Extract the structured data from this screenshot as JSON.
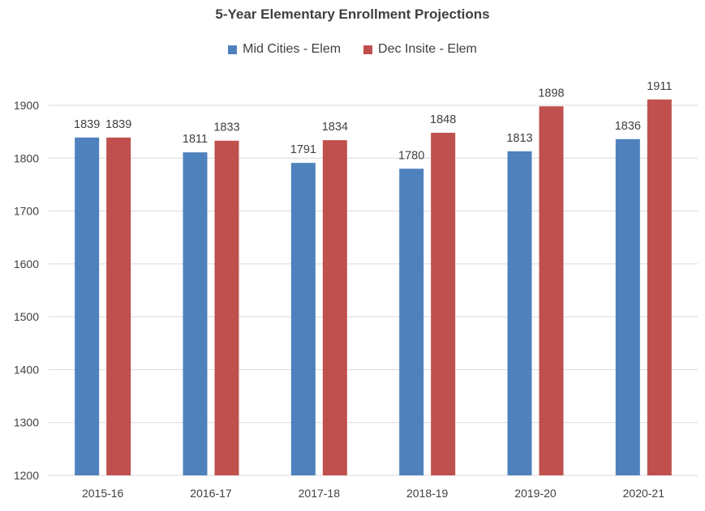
{
  "chart_data": {
    "type": "bar",
    "title": "5-Year Elementary Enrollment Projections",
    "xlabel": "",
    "ylabel": "",
    "categories": [
      "2015-16",
      "2016-17",
      "2017-18",
      "2018-19",
      "2019-20",
      "2020-21"
    ],
    "series": [
      {
        "name": "Mid Cities - Elem",
        "color": "#4f81bd",
        "values": [
          1839,
          1811,
          1791,
          1780,
          1813,
          1836
        ]
      },
      {
        "name": "Dec Insite - Elem",
        "color": "#c0504d",
        "values": [
          1839,
          1833,
          1834,
          1848,
          1898,
          1911
        ]
      }
    ],
    "ylim": [
      1200,
      1900
    ],
    "yticks": [
      1200,
      1300,
      1400,
      1500,
      1600,
      1700,
      1800,
      1900
    ],
    "grid": true,
    "legend_position": "top"
  }
}
